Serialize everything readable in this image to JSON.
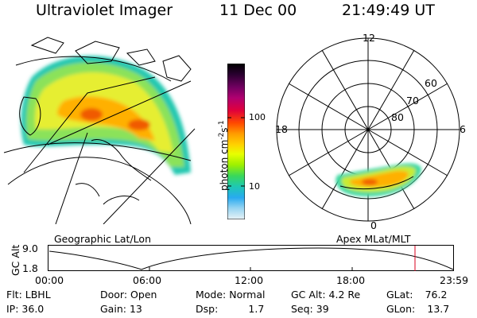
{
  "header": {
    "instrument": "Ultraviolet Imager",
    "date": "11 Dec 00",
    "time": "21:49:49 UT"
  },
  "geo_panel": {
    "label": "Geographic Lat/Lon"
  },
  "colorbar": {
    "unit_main": "photon cm",
    "unit_sup1": "-2",
    "unit_mid": "s",
    "unit_sup2": "-1",
    "ticks": [
      "100",
      "10"
    ],
    "colors": [
      "#000000",
      "#2a0030",
      "#700060",
      "#b00070",
      "#e0003c",
      "#ff4800",
      "#ff9c00",
      "#ffd200",
      "#e8ff00",
      "#9ef000",
      "#3ad85a",
      "#1ec8b4",
      "#28aaf0",
      "#9ad6f2",
      "#e8f2f6"
    ]
  },
  "polar_panel": {
    "label": "Apex MLat/MLT",
    "mlt_labels": {
      "top": "12",
      "left": "18",
      "right": "6",
      "bottom": "0"
    },
    "lat_labels": [
      "60",
      "70",
      "80"
    ]
  },
  "altitude_plot": {
    "ylabel": "GC Alt",
    "yticks": [
      "9.0",
      "1.8"
    ],
    "xticks": [
      "00:00",
      "06:00",
      "12:00",
      "18:00",
      "23:59"
    ],
    "current_time_marker": "21:49:49"
  },
  "status": {
    "row1": [
      {
        "label": "Flt:",
        "value": "LBHL"
      },
      {
        "label": "Door:",
        "value": "Open"
      },
      {
        "label": "Mode:",
        "value": "Normal"
      },
      {
        "label": "GC Alt:",
        "value": "4.2 Re"
      },
      {
        "label": "GLat:",
        "value": "76.2"
      }
    ],
    "row2": [
      {
        "label": "IP:",
        "value": "36.0"
      },
      {
        "label": "Gain:",
        "value": "13"
      },
      {
        "label": "Dsp:",
        "value": "1.7"
      },
      {
        "label": "Seq:",
        "value": "39"
      },
      {
        "label": "GLon:",
        "value": "13.7"
      }
    ]
  }
}
